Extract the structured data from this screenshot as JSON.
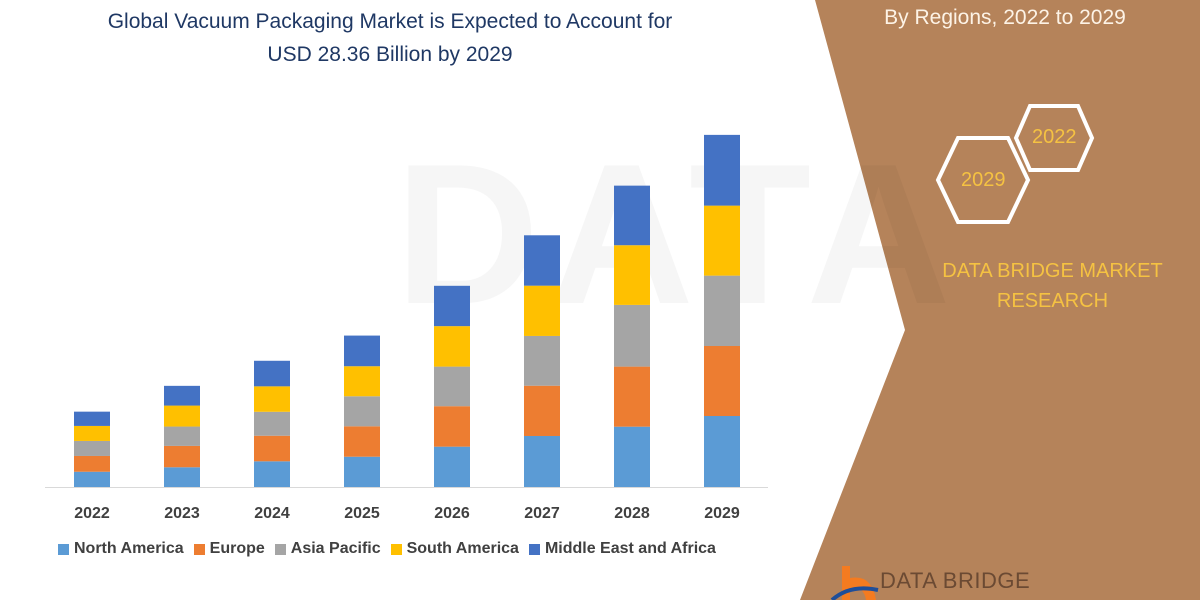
{
  "title_lines": [
    "Global Vacuum Packaging Market is Expected to Account for",
    "USD 28.36 Billion by 2029"
  ],
  "side_panel": {
    "subtitle": "By Regions, 2022 to 2029",
    "hex_years": [
      "2022",
      "2029"
    ],
    "brand_lines": [
      "DATA BRIDGE MARKET",
      "RESEARCH"
    ],
    "logo_text": "DATA BRIDGE",
    "panel_color": "#b5835a",
    "accent_color": "#f5c242"
  },
  "chart_data": {
    "type": "bar",
    "stacked": true,
    "title": "Global Vacuum Packaging Market is Expected to Account for USD 28.36 Billion by 2029",
    "categories": [
      "2022",
      "2023",
      "2024",
      "2025",
      "2026",
      "2027",
      "2028",
      "2029"
    ],
    "ylim": [
      0,
      28.36
    ],
    "grid": false,
    "legend": "bottom",
    "series": [
      {
        "name": "North America",
        "color": "#5b9bd5",
        "values": [
          1.23,
          1.59,
          2.07,
          2.44,
          3.25,
          4.11,
          4.86,
          5.72
        ]
      },
      {
        "name": "Europe",
        "color": "#ed7d31",
        "values": [
          1.27,
          1.72,
          2.06,
          2.45,
          3.26,
          4.05,
          4.84,
          5.64
        ]
      },
      {
        "name": "Asia Pacific",
        "color": "#a5a5a5",
        "values": [
          1.21,
          1.56,
          1.93,
          2.42,
          3.19,
          4.01,
          4.97,
          5.67
        ]
      },
      {
        "name": "South America",
        "color": "#ffc000",
        "values": [
          1.21,
          1.69,
          2.05,
          2.42,
          3.26,
          4.05,
          4.81,
          5.64
        ]
      },
      {
        "name": "Middle East and Africa",
        "color": "#4472c4",
        "values": [
          1.15,
          1.59,
          2.06,
          2.47,
          3.25,
          4.06,
          4.8,
          5.7
        ]
      }
    ]
  }
}
